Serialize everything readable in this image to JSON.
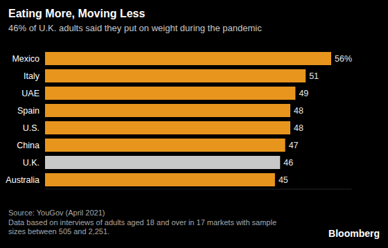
{
  "chart_data": {
    "type": "bar",
    "orientation": "horizontal",
    "title": "Eating More, Moving Less",
    "subtitle": "46% of U.K. adults said they put on weight during the pandemic",
    "categories": [
      "Mexico",
      "Italy",
      "UAE",
      "Spain",
      "U.S.",
      "China",
      "U.K.",
      "Australia"
    ],
    "values": [
      56,
      51,
      49,
      48,
      48,
      47,
      46,
      45
    ],
    "value_labels": [
      "56%",
      "51",
      "49",
      "48",
      "48",
      "47",
      "46",
      "45"
    ],
    "colors": [
      "#e8951e",
      "#e8951e",
      "#e8951e",
      "#e8951e",
      "#e8951e",
      "#e8951e",
      "#c8c8c8",
      "#e8951e"
    ],
    "xlim": [
      0,
      60
    ],
    "grid": false,
    "data_labels": true,
    "tick_labels": "y",
    "source": "Source: YouGov (April 2021)",
    "notes": [
      "Data based on interviews of adults aged 18 and over in 17 markets with sample",
      "sizes between 505 and 2,251."
    ],
    "credit": "Bloomberg"
  }
}
